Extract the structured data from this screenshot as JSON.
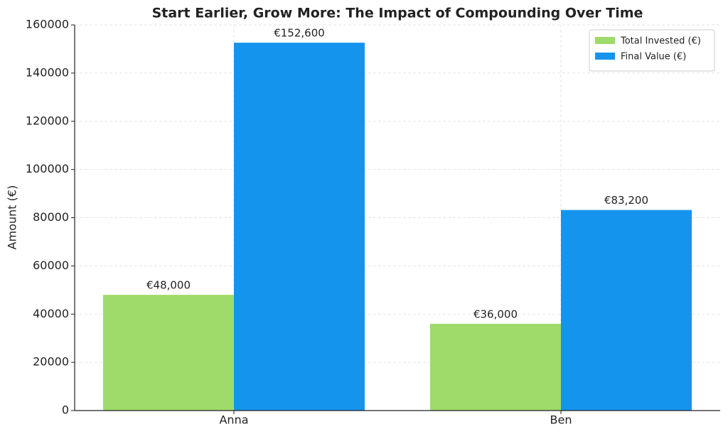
{
  "chart_data": {
    "type": "bar",
    "title": "Start Earlier, Grow More: The Impact of Compounding Over Time",
    "y_label": "Amount (€)",
    "categories": [
      "Anna",
      "Ben"
    ],
    "series": [
      {
        "name": "Total Invested (€)",
        "color": "#9edb6a",
        "values": [
          48000,
          36000
        ],
        "value_labels": [
          "€48,000",
          "€36,000"
        ]
      },
      {
        "name": "Final Value (€)",
        "color": "#1594ee",
        "values": [
          152600,
          83200
        ],
        "value_labels": [
          "€152,600",
          "€83,200"
        ]
      }
    ],
    "ylim": [
      0,
      160000
    ],
    "yticks": [
      0,
      20000,
      40000,
      60000,
      80000,
      100000,
      120000,
      140000,
      160000
    ],
    "grid": true,
    "legend": "upper right"
  }
}
